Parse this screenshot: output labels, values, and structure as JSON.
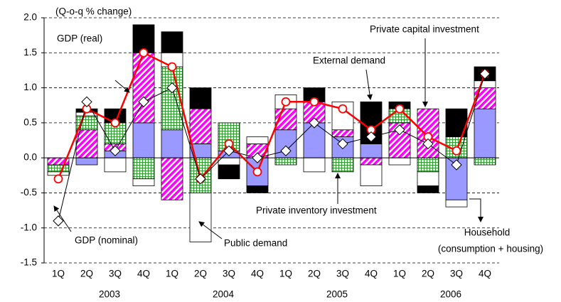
{
  "chart_data": {
    "type": "stacked-bar-line",
    "annotations": [
      "(Q-o-q % change)",
      "GDP (real)",
      "GDP (nominal)",
      "Public demand",
      "Private inventory investment",
      "External demand",
      "Private capital investment"
    ],
    "categories": [
      "1Q",
      "2Q",
      "3Q",
      "4Q",
      "1Q",
      "2Q",
      "3Q",
      "4Q",
      "1Q",
      "2Q",
      "3Q",
      "4Q",
      "1Q",
      "2Q",
      "3Q",
      "4Q"
    ],
    "groups": [
      "2003",
      "2004",
      "2005",
      "2006"
    ],
    "ylim": [
      -1.5,
      2.0
    ],
    "yticks": [
      {
        "value": -1.5,
        "label": "-1.5"
      },
      {
        "value": -1.0,
        "label": "-1.0"
      },
      {
        "value": -0.5,
        "label": "-0.5"
      },
      {
        "value": 0,
        "label": "0.0"
      },
      {
        "value": 0.5,
        "label": "0.5"
      },
      {
        "value": 1.0,
        "label": "1.0"
      },
      {
        "value": 1.5,
        "label": "1.5"
      },
      {
        "value": 2.0,
        "label": "2.0"
      }
    ],
    "grid": true,
    "series": [
      {
        "name": "Household",
        "detail": "(consumption + housing)",
        "color": "#9999ff",
        "pattern": "solid",
        "values": [
          0,
          -0.1,
          0.1,
          0.5,
          0.4,
          0.2,
          0.1,
          -0.4,
          0.4,
          0.5,
          0.3,
          0.2,
          0,
          0,
          -0.6,
          0.7
        ]
      },
      {
        "name": "Private capital investment",
        "color": "#ff00ff",
        "pattern": "stripes",
        "values": [
          -0.1,
          0.4,
          0.1,
          1.0,
          -0.6,
          0.5,
          0,
          0.2,
          0.3,
          0.3,
          0.1,
          -0.1,
          0.5,
          0.7,
          0,
          0.3
        ]
      },
      {
        "name": "Private inventory investment",
        "color": "#339933",
        "pattern": "checks",
        "values": [
          -0.1,
          0.2,
          0.3,
          -0.3,
          0.9,
          -0.5,
          0.4,
          0,
          -0.1,
          0,
          -0.2,
          0,
          0.2,
          -0.2,
          0.3,
          -0.1
        ]
      },
      {
        "name": "Public demand",
        "color": "#ffffff",
        "pattern": "solid",
        "values": [
          -0.05,
          0.05,
          -0.2,
          -0.1,
          0.2,
          -0.7,
          -0.1,
          0.1,
          0.2,
          -0.2,
          0.4,
          -0.3,
          -0.1,
          -0.2,
          -0.1,
          0.1
        ]
      },
      {
        "name": "External demand",
        "color": "#000000",
        "pattern": "solid",
        "values": [
          0,
          0.05,
          0.2,
          0.4,
          0.3,
          0.3,
          -0.2,
          -0.1,
          0,
          0.2,
          0,
          0.6,
          0.1,
          -0.1,
          0.4,
          0.2
        ]
      }
    ],
    "lines": [
      {
        "name": "GDP (real)",
        "color": "#ff0000",
        "marker": "circle",
        "values": [
          -0.3,
          0.7,
          0.5,
          1.5,
          1.3,
          -0.3,
          0.2,
          -0.2,
          0.8,
          0.8,
          0.7,
          0.4,
          0.7,
          0.3,
          0.1,
          1.2
        ]
      },
      {
        "name": "GDP (nominal)",
        "color": "#000000",
        "marker": "diamond",
        "values": [
          -0.9,
          0.8,
          0.1,
          0.8,
          1.0,
          -0.3,
          0.1,
          0.0,
          0.1,
          0.5,
          0.2,
          0.3,
          0.4,
          0.2,
          -0.1,
          1.2
        ]
      }
    ]
  }
}
